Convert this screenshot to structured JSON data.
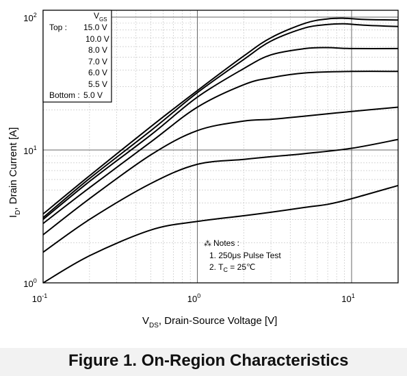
{
  "figure_caption": "Figure 1. On-Region Characteristics",
  "chart_data": {
    "type": "line",
    "xlabel": "V_DS, Drain-Source Voltage [V]",
    "ylabel": "I_D, Drain Current [A]",
    "x_scale": "log",
    "y_scale": "log",
    "xlim": [
      0.1,
      20
    ],
    "ylim": [
      1,
      100
    ],
    "x_ticks": [
      {
        "base": "10",
        "exp": "-1",
        "value": 0.1
      },
      {
        "base": "10",
        "exp": "0",
        "value": 1
      },
      {
        "base": "10",
        "exp": "1",
        "value": 10
      }
    ],
    "y_ticks": [
      {
        "base": "10",
        "exp": "0",
        "value": 1
      },
      {
        "base": "10",
        "exp": "1",
        "value": 10
      },
      {
        "base": "10",
        "exp": "2",
        "value": 100
      }
    ],
    "grid": true,
    "legend": {
      "title_main": "V",
      "title_sub": "GS",
      "top_label": "Top :",
      "bottom_label": "Bottom :",
      "entries": [
        "15.0 V",
        "10.0 V",
        "8.0 V",
        "7.0 V",
        "6.0 V",
        "5.5 V",
        "5.0 V"
      ],
      "placement": "top-left"
    },
    "notes": {
      "title": "Notes :",
      "line1": "1. 250μs Pulse Test",
      "line2_pre": "2. T",
      "line2_sub": "C",
      "line2_post": " = 25℃"
    },
    "series": [
      {
        "x": [
          0.1,
          0.2,
          0.5,
          1,
          2,
          3,
          5,
          7,
          9,
          12,
          20
        ],
        "values": [
          3.3,
          6.4,
          15,
          28,
          51,
          70,
          90,
          97,
          98,
          96,
          95
        ]
      },
      {
        "x": [
          0.1,
          0.2,
          0.5,
          1,
          2,
          3,
          5,
          7,
          9,
          12,
          20
        ],
        "values": [
          3.1,
          6.1,
          14,
          27,
          48,
          66,
          83,
          88,
          89,
          87,
          85
        ]
      },
      {
        "x": [
          0.1,
          0.2,
          0.5,
          1,
          2,
          3,
          5,
          7,
          10,
          20
        ],
        "values": [
          3.0,
          5.8,
          13,
          25,
          41,
          52,
          58,
          59,
          58,
          58
        ]
      },
      {
        "x": [
          0.1,
          0.2,
          0.5,
          1,
          2,
          3,
          5,
          10,
          20
        ],
        "values": [
          2.8,
          5.2,
          11.5,
          21,
          31,
          35,
          38,
          39,
          39
        ]
      },
      {
        "x": [
          0.1,
          0.2,
          0.5,
          1,
          2,
          3,
          5,
          10,
          20
        ],
        "values": [
          2.3,
          4.3,
          9.2,
          14,
          16.5,
          17,
          18,
          19.5,
          21
        ]
      },
      {
        "x": [
          0.1,
          0.2,
          0.5,
          1,
          2,
          3,
          5,
          10,
          20
        ],
        "values": [
          1.7,
          3.0,
          5.6,
          7.8,
          8.5,
          8.9,
          9.4,
          10.3,
          12
        ]
      },
      {
        "x": [
          0.1,
          0.2,
          0.5,
          1,
          2,
          3,
          5,
          7,
          10,
          20
        ],
        "values": [
          1.0,
          1.6,
          2.5,
          2.9,
          3.2,
          3.4,
          3.7,
          3.9,
          4.3,
          5.4
        ]
      }
    ]
  }
}
